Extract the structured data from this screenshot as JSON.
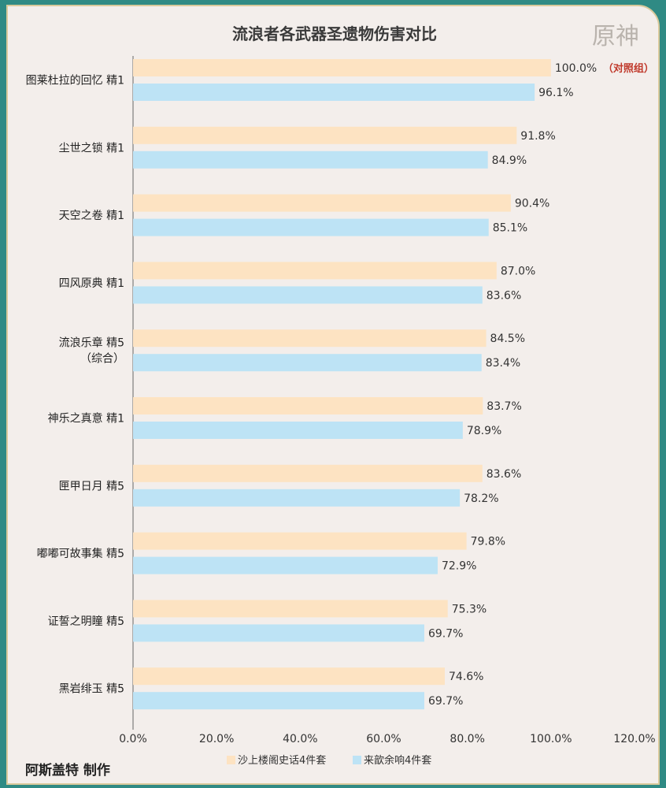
{
  "chart_data": {
    "type": "bar",
    "orientation": "horizontal",
    "title": "流浪者各武器圣遗物伤害对比",
    "categories": [
      [
        "图莱杜拉的回忆 精1"
      ],
      [
        "尘世之锁 精1"
      ],
      [
        "天空之卷 精1"
      ],
      [
        "四风原典 精1"
      ],
      [
        "流浪乐章 精5",
        "（综合）"
      ],
      [
        "神乐之真意 精1"
      ],
      [
        "匣甲日月 精5"
      ],
      [
        "嘟嘟可故事集 精5"
      ],
      [
        "证誓之明瞳 精5"
      ],
      [
        "黑岩绯玉 精5"
      ]
    ],
    "series": [
      {
        "name": "沙上楼阁史话4件套",
        "color": "#fde3c2",
        "values": [
          100.0,
          91.8,
          90.4,
          87.0,
          84.5,
          83.7,
          83.6,
          79.8,
          75.3,
          74.6
        ]
      },
      {
        "name": "来歆余响4件套",
        "color": "#bde3f5",
        "values": [
          96.1,
          84.9,
          85.1,
          83.6,
          83.4,
          78.9,
          78.2,
          72.9,
          69.7,
          69.7
        ]
      }
    ],
    "xlim": [
      0,
      120
    ],
    "xticks": [
      "0.0%",
      "20.0%",
      "40.0%",
      "60.0%",
      "80.0%",
      "100.0%",
      "120.0%"
    ],
    "annotation": "（对照组）",
    "legend_position": "bottom-center",
    "grid": false
  },
  "credit": "阿斯盖特 制作",
  "logo_text": "原神"
}
